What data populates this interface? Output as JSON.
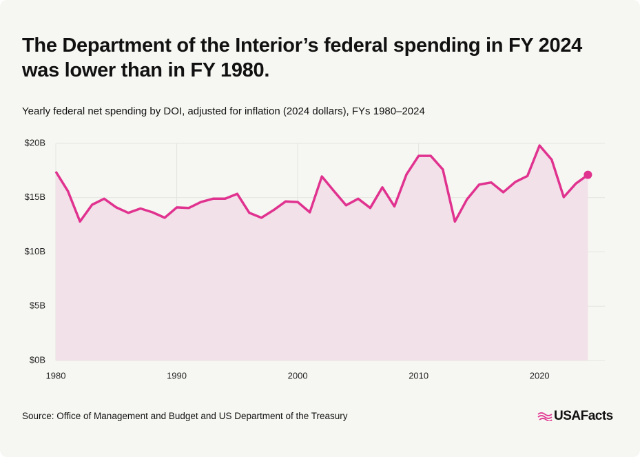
{
  "chart_data": {
    "type": "area-line",
    "title": "The Department of the Interior’s federal spending in FY 2024 was lower than in FY 1980.",
    "subtitle": "Yearly federal net spending by DOI, adjusted for inflation (2024 dollars), FYs 1980–2024",
    "source": "Source: Office of Management and Budget and US Department of the Treasury",
    "x": [
      1980,
      1981,
      1982,
      1983,
      1984,
      1985,
      1986,
      1987,
      1988,
      1989,
      1990,
      1991,
      1992,
      1993,
      1994,
      1995,
      1996,
      1997,
      1998,
      1999,
      2000,
      2001,
      2002,
      2003,
      2004,
      2005,
      2006,
      2007,
      2008,
      2009,
      2010,
      2011,
      2012,
      2013,
      2014,
      2015,
      2016,
      2017,
      2018,
      2019,
      2020,
      2021,
      2022,
      2023,
      2024
    ],
    "series": [
      {
        "color": "#e0328f",
        "area_color": "#f3e1ea",
        "values": [
          17.4,
          15.6,
          12.8,
          14.35,
          14.9,
          14.1,
          13.6,
          14.0,
          13.65,
          13.15,
          14.1,
          14.05,
          14.6,
          14.9,
          14.9,
          15.35,
          13.6,
          13.15,
          13.85,
          14.65,
          14.6,
          13.65,
          16.95,
          15.6,
          14.3,
          14.9,
          14.05,
          15.95,
          14.2,
          17.15,
          18.85,
          18.85,
          17.6,
          12.8,
          14.85,
          16.2,
          16.4,
          15.5,
          16.45,
          17.0,
          19.8,
          18.5,
          15.05,
          16.3,
          17.1
        ]
      }
    ],
    "xlim": [
      1980,
      2025.4
    ],
    "ylim": [
      0,
      20
    ],
    "xticks": [
      1980,
      1990,
      2000,
      2010,
      2020
    ],
    "yticks": [
      {
        "value": 0,
        "label": "$0B"
      },
      {
        "value": 5,
        "label": "$5B"
      },
      {
        "value": 10,
        "label": "$10B"
      },
      {
        "value": 15,
        "label": "$15B"
      },
      {
        "value": 20,
        "label": "$20B"
      }
    ],
    "grid": true
  },
  "brand": "USAFacts"
}
